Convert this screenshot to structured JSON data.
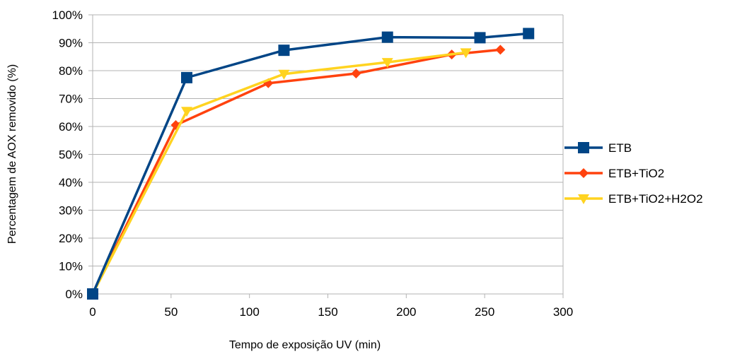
{
  "chart_data": {
    "type": "line",
    "title": "",
    "xlabel": "Tempo de exposição UV (min)",
    "ylabel": "Percentagem de AOX removido  (%)",
    "xlim": [
      0,
      300
    ],
    "ylim": [
      0,
      100
    ],
    "x_ticks": [
      "0",
      "50",
      "100",
      "150",
      "200",
      "250",
      "300"
    ],
    "y_ticks": [
      "0%",
      "10%",
      "20%",
      "30%",
      "40%",
      "50%",
      "60%",
      "70%",
      "80%",
      "90%",
      "100%"
    ],
    "grid": "horizontal",
    "legend_position": "right",
    "series": [
      {
        "name": "ETB",
        "color": "#004586",
        "marker": "square",
        "points": [
          [
            0,
            0
          ],
          [
            60,
            77.5
          ],
          [
            122,
            87.3
          ],
          [
            188,
            92
          ],
          [
            247,
            91.8
          ],
          [
            278,
            93.3
          ]
        ]
      },
      {
        "name": "ETB+TiO2",
        "color": "#ff420e",
        "marker": "diamond",
        "points": [
          [
            0,
            0
          ],
          [
            53,
            60.5
          ],
          [
            112,
            75.5
          ],
          [
            168,
            79
          ],
          [
            229,
            85.8
          ],
          [
            260,
            87.5
          ]
        ]
      },
      {
        "name": "ETB+TiO2+H2O2",
        "color": "#ffd320",
        "marker": "triangle-down",
        "points": [
          [
            0,
            0
          ],
          [
            60,
            65.5
          ],
          [
            122,
            78.8
          ],
          [
            188,
            83
          ],
          [
            238,
            86.5
          ]
        ]
      }
    ]
  }
}
